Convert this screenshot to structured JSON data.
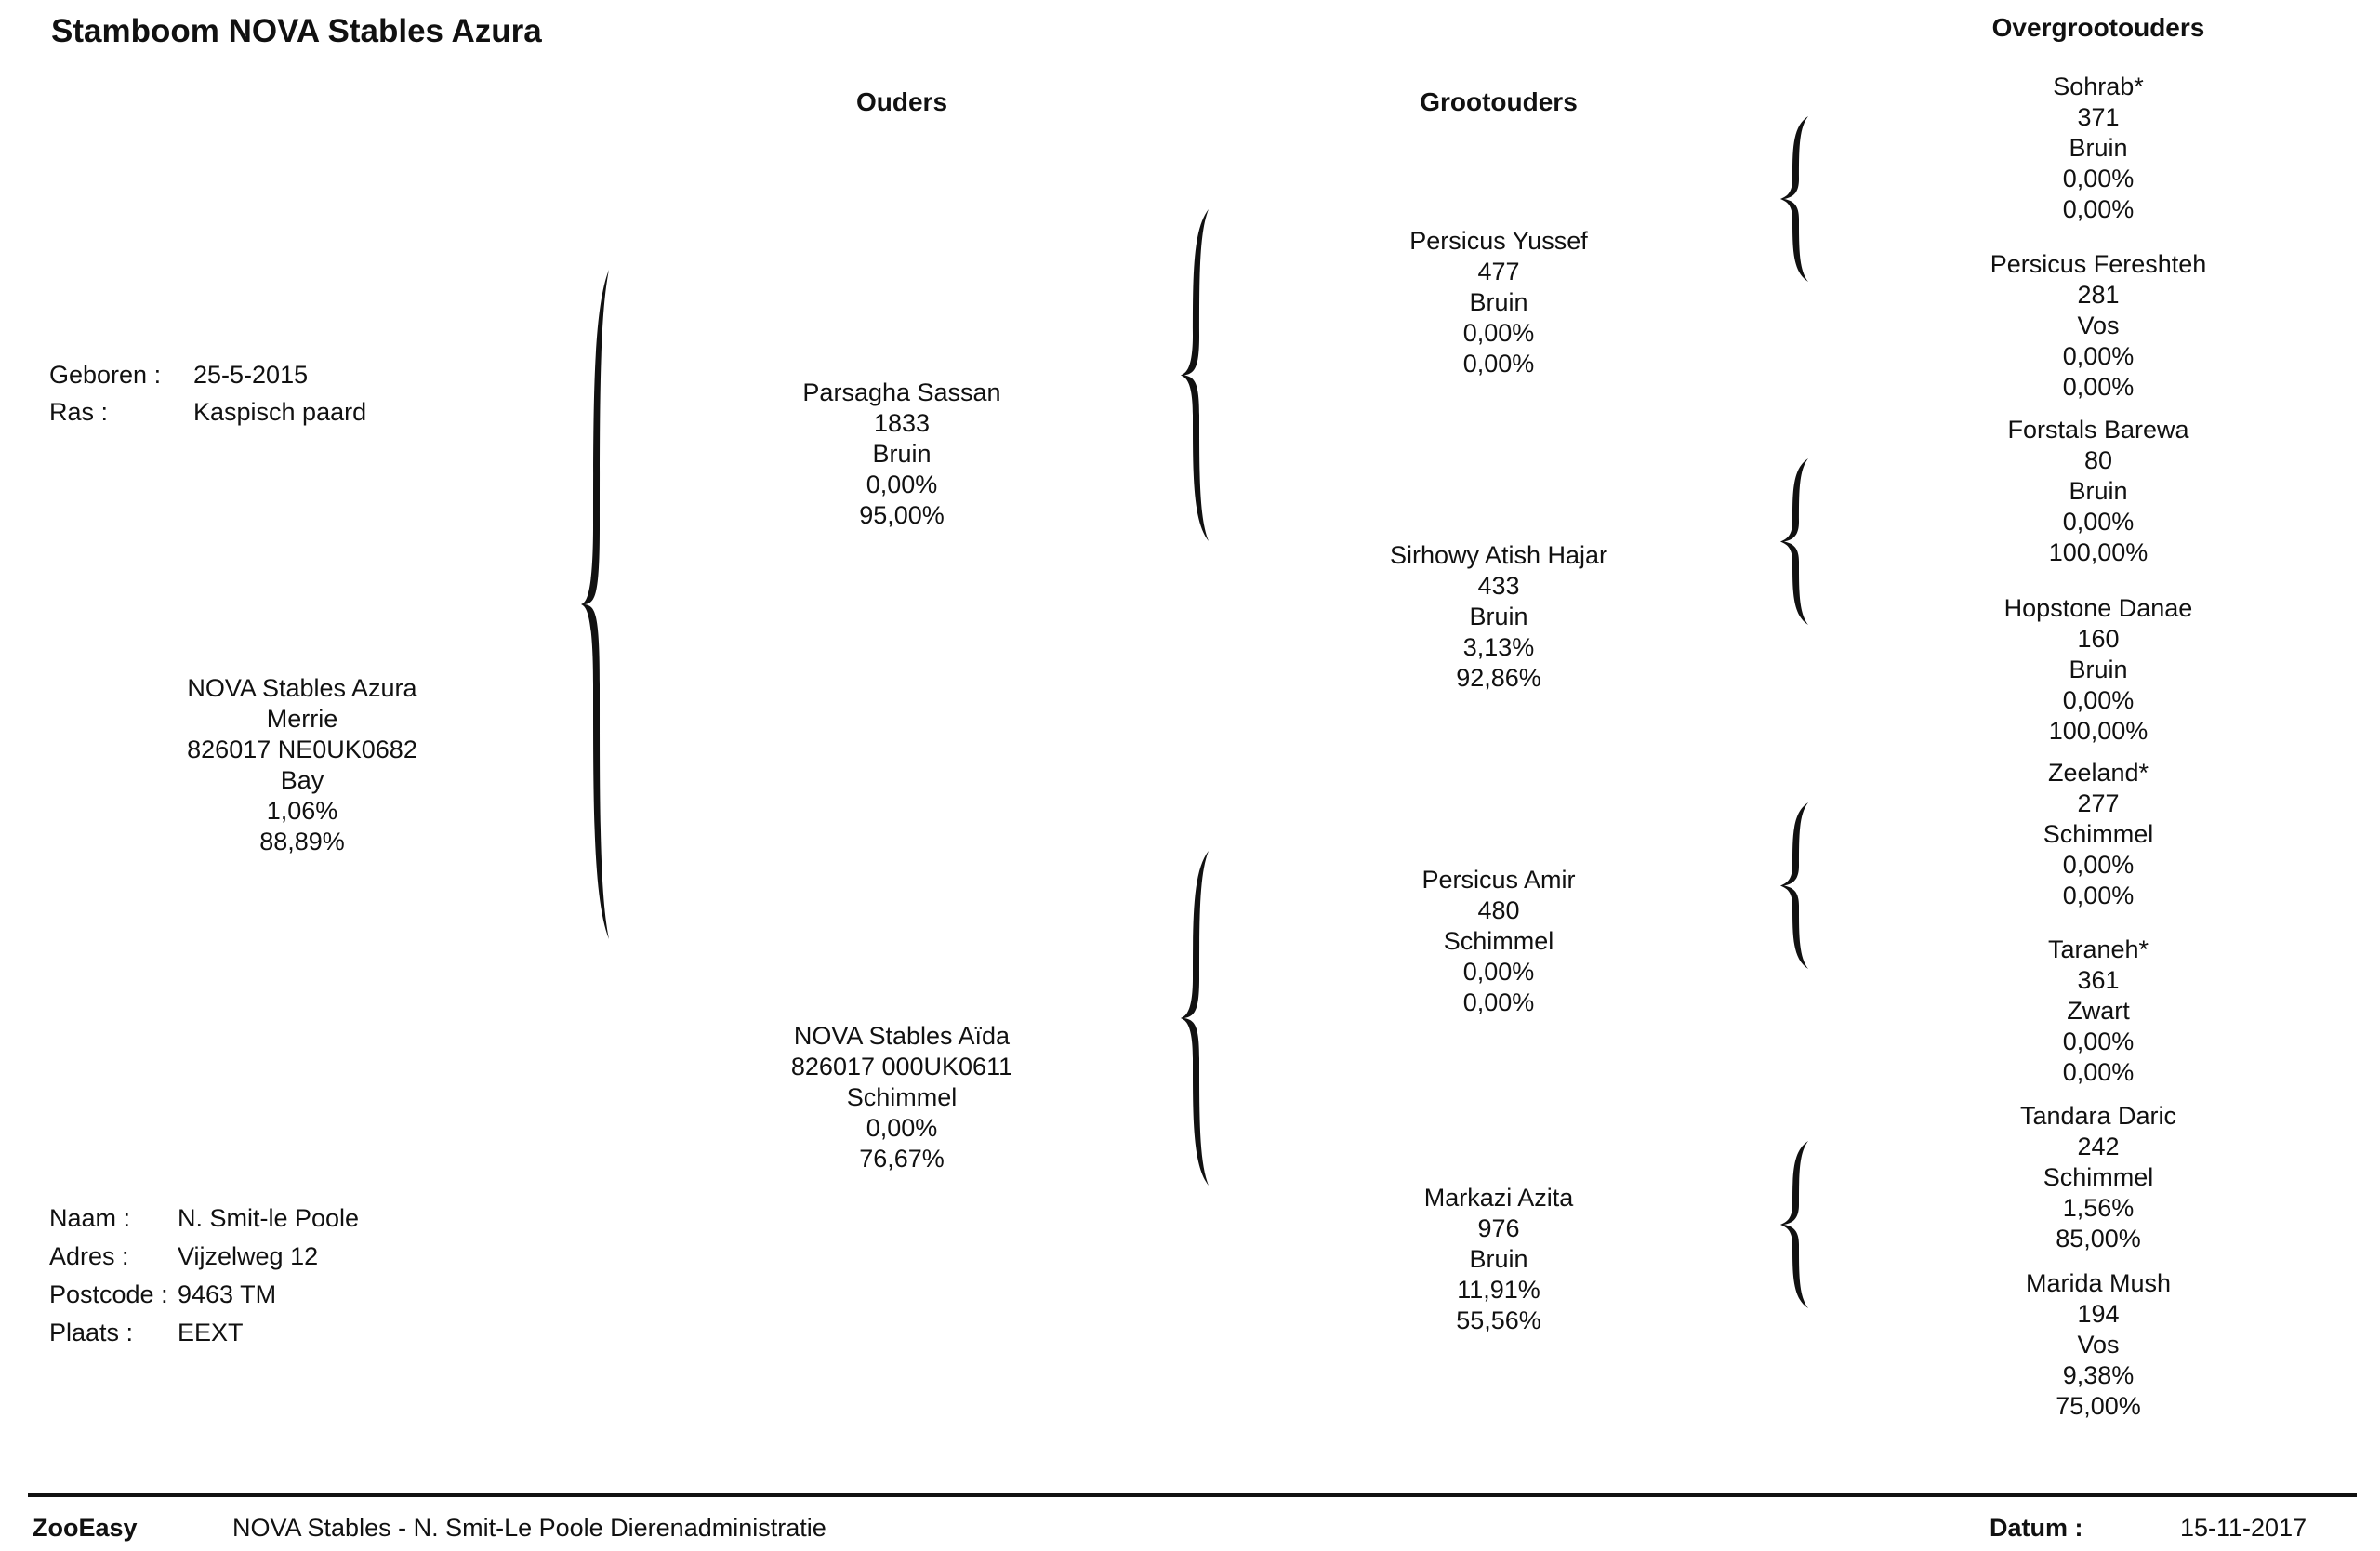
{
  "header": {
    "title": "Stamboom NOVA Stables Azura"
  },
  "columns": {
    "parents": "Ouders",
    "grandparents": "Grootouders",
    "great_grandparents": "Overgrootouders"
  },
  "animal": {
    "born_label": "Geboren :",
    "born_value": "25-5-2015",
    "breed_label": "Ras :",
    "breed_value": "Kaspisch paard",
    "name": "NOVA Stables Azura",
    "sex": "Merrie",
    "id": "826017 NE0UK0682",
    "color": "Bay",
    "pct1": "1,06%",
    "pct2": "88,89%"
  },
  "owner": {
    "name_label": "Naam :",
    "name_value": "N.  Smit-le Poole",
    "address_label": "Adres :",
    "address_value": "Vijzelweg 12",
    "postcode_label": "Postcode :",
    "postcode_value": "9463 TM",
    "city_label": "Plaats :",
    "city_value": "EEXT"
  },
  "parents": [
    {
      "name": "Parsagha Sassan",
      "id": "1833",
      "color": "Bruin",
      "pct1": "0,00%",
      "pct2": "95,00%"
    },
    {
      "name": "NOVA Stables Aïda",
      "id": "826017 000UK0611",
      "color": "Schimmel",
      "pct1": "0,00%",
      "pct2": "76,67%"
    }
  ],
  "grandparents": [
    {
      "name": "Persicus Yussef",
      "id": "477",
      "color": "Bruin",
      "pct1": "0,00%",
      "pct2": "0,00%"
    },
    {
      "name": "Sirhowy Atish Hajar",
      "id": "433",
      "color": "Bruin",
      "pct1": "3,13%",
      "pct2": "92,86%"
    },
    {
      "name": "Persicus Amir",
      "id": "480",
      "color": "Schimmel",
      "pct1": "0,00%",
      "pct2": "0,00%"
    },
    {
      "name": "Markazi Azita",
      "id": "976",
      "color": "Bruin",
      "pct1": "11,91%",
      "pct2": "55,56%"
    }
  ],
  "great_grandparents": [
    {
      "name": "Sohrab*",
      "id": "371",
      "color": "Bruin",
      "pct1": "0,00%",
      "pct2": "0,00%"
    },
    {
      "name": "Persicus Fereshteh",
      "id": "281",
      "color": "Vos",
      "pct1": "0,00%",
      "pct2": "0,00%"
    },
    {
      "name": "Forstals Barewa",
      "id": "80",
      "color": "Bruin",
      "pct1": "0,00%",
      "pct2": "100,00%"
    },
    {
      "name": "Hopstone Danae",
      "id": "160",
      "color": "Bruin",
      "pct1": "0,00%",
      "pct2": "100,00%"
    },
    {
      "name": "Zeeland*",
      "id": "277",
      "color": "Schimmel",
      "pct1": "0,00%",
      "pct2": "0,00%"
    },
    {
      "name": "Taraneh*",
      "id": "361",
      "color": "Zwart",
      "pct1": "0,00%",
      "pct2": "0,00%"
    },
    {
      "name": "Tandara Daric",
      "id": "242",
      "color": "Schimmel",
      "pct1": "1,56%",
      "pct2": "85,00%"
    },
    {
      "name": "Marida Mush",
      "id": "194",
      "color": "Vos",
      "pct1": "9,38%",
      "pct2": "75,00%"
    }
  ],
  "footer": {
    "app": "ZooEasy",
    "org": "NOVA Stables - N. Smit-Le Poole Dierenadministratie",
    "date_label": "Datum :",
    "date_value": "15-11-2017"
  }
}
